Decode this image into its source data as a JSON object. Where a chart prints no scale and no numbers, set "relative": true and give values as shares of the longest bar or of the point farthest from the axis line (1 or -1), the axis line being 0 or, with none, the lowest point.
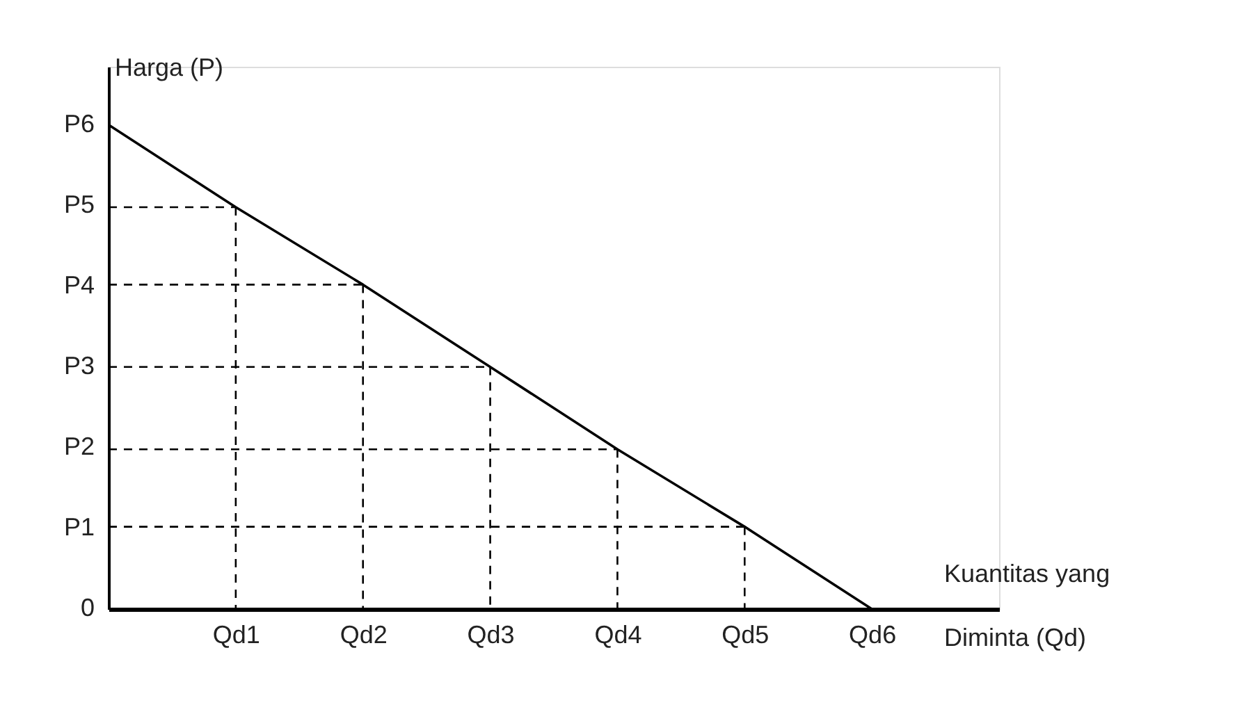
{
  "chart_data": {
    "type": "line",
    "relative": true,
    "xlabel": "Kuantitas yang Diminta (Qd)",
    "ylabel": "Harga (P)",
    "categories": [
      null,
      "Qd1",
      "Qd2",
      "Qd3",
      "Qd4",
      "Qd5",
      "Qd6",
      null
    ],
    "annotations": [
      "0",
      "P1",
      "P2",
      "P3",
      "P4",
      "P5",
      "P6"
    ],
    "grid": false,
    "marker": "none",
    "series": [
      {
        "color": "#000000",
        "line_style": "solid",
        "values": [
          1,
          0.83,
          0.67,
          0.5,
          0.33,
          0.17,
          0,
          null
        ]
      },
      {
        "color": "#000000",
        "line_style": "dashed",
        "values": [
          0.83,
          0.83,
          null,
          null,
          null,
          null,
          null,
          null
        ]
      },
      {
        "color": "#000000",
        "line_style": "dashed",
        "values": [
          0.67,
          0.67,
          0.67,
          null,
          null,
          null,
          null,
          null
        ]
      },
      {
        "color": "#000000",
        "line_style": "dashed",
        "values": [
          0.5,
          0.5,
          0.5,
          0.5,
          null,
          null,
          null,
          null
        ]
      },
      {
        "color": "#000000",
        "line_style": "dashed",
        "values": [
          0.33,
          0.33,
          0.33,
          0.33,
          0.33,
          null,
          null,
          null
        ]
      },
      {
        "color": "#000000",
        "line_style": "dashed",
        "values": [
          0.17,
          0.17,
          0.17,
          0.17,
          0.17,
          0.17,
          null,
          null
        ]
      },
      {
        "color": "#000000",
        "line_style": "dashed",
        "x": [
          "Qd1",
          "Qd1"
        ],
        "values": [
          0.83,
          0
        ]
      },
      {
        "color": "#000000",
        "line_style": "dashed",
        "x": [
          "Qd2",
          "Qd2"
        ],
        "values": [
          0.67,
          0
        ]
      },
      {
        "color": "#000000",
        "line_style": "dashed",
        "x": [
          "Qd3",
          "Qd3"
        ],
        "values": [
          0.5,
          0
        ]
      },
      {
        "color": "#000000",
        "line_style": "dashed",
        "x": [
          "Qd4",
          "Qd4"
        ],
        "values": [
          0.33,
          0
        ]
      },
      {
        "color": "#000000",
        "line_style": "dashed",
        "x": [
          "Qd5",
          "Qd5"
        ],
        "values": [
          0.17,
          0
        ]
      }
    ]
  }
}
